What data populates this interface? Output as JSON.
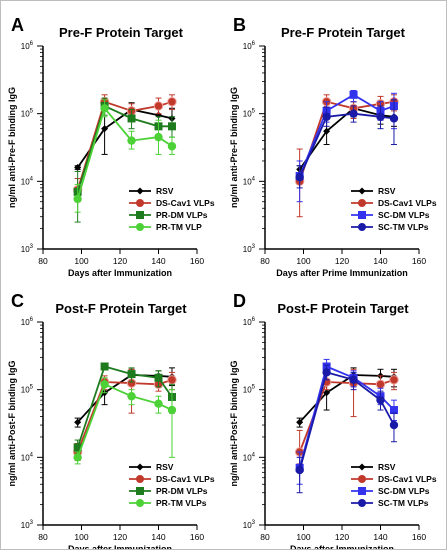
{
  "figure": {
    "panels_order": [
      "A",
      "B",
      "C",
      "D"
    ]
  },
  "chart_data": [
    {
      "panel_letter": "A",
      "type": "line",
      "title": "Pre-F Protein Target",
      "xlabel": "Days after Immunization",
      "ylabel": "ng/ml anti-Pre-F binding IgG",
      "xlim": [
        80,
        160
      ],
      "ylim": [
        1000,
        1000000
      ],
      "y_scale": "log",
      "xticks": [
        "80",
        "100",
        "120",
        "140",
        "160"
      ],
      "yticks": [
        {
          "base": "10",
          "exp": "3",
          "v": 1000
        },
        {
          "base": "10",
          "exp": "4",
          "v": 10000
        },
        {
          "base": "10",
          "exp": "5",
          "v": 100000
        },
        {
          "base": "10",
          "exp": "6",
          "v": 1000000
        }
      ],
      "legend_position": "lower-right",
      "series": [
        {
          "name": "RSV",
          "color": "#000000",
          "marker": "diamond",
          "x": [
            98,
            112,
            126,
            140,
            147
          ],
          "y": [
            16000,
            60000,
            115000,
            95000,
            85000
          ],
          "err": [
            [
              15000,
              17000
            ],
            [
              25000,
              150000
            ],
            [
              90000,
              145000
            ],
            [
              70000,
              130000
            ],
            [
              60000,
              120000
            ]
          ]
        },
        {
          "name": "DS-Cav1 VLPs",
          "color": "#c0392b",
          "marker": "circle",
          "x": [
            98,
            112,
            126,
            140,
            147
          ],
          "y": [
            7500,
            150000,
            110000,
            130000,
            150000
          ],
          "err": [
            [
              5000,
              11000
            ],
            [
              110000,
              190000
            ],
            [
              85000,
              140000
            ],
            [
              100000,
              170000
            ],
            [
              115000,
              190000
            ]
          ]
        },
        {
          "name": "PR-DM VLPs",
          "color": "#1e7b1e",
          "marker": "square",
          "x": [
            98,
            112,
            126,
            140,
            147
          ],
          "y": [
            7000,
            130000,
            85000,
            65000,
            65000
          ],
          "err": [
            [
              2500,
              14000
            ],
            [
              95000,
              170000
            ],
            [
              60000,
              115000
            ],
            [
              45000,
              90000
            ],
            [
              45000,
              90000
            ]
          ]
        },
        {
          "name": "PR-TM VLP",
          "color": "#4cd137",
          "marker": "circle",
          "x": [
            98,
            112,
            126,
            140,
            147
          ],
          "y": [
            5500,
            120000,
            40000,
            45000,
            33000
          ],
          "err": [
            [
              3500,
              9000
            ],
            [
              90000,
              160000
            ],
            [
              30000,
              55000
            ],
            [
              25000,
              80000
            ],
            [
              25000,
              45000
            ]
          ]
        }
      ]
    },
    {
      "panel_letter": "B",
      "type": "line",
      "title": "Pre-F Protein Target",
      "xlabel": "Days after Prime Immunization",
      "ylabel": "ng/ml anti-Pre-F binding IgG",
      "xlim": [
        80,
        160
      ],
      "ylim": [
        1000,
        1000000
      ],
      "y_scale": "log",
      "xticks": [
        "80",
        "100",
        "120",
        "140",
        "160"
      ],
      "yticks": [
        {
          "base": "10",
          "exp": "3",
          "v": 1000
        },
        {
          "base": "10",
          "exp": "4",
          "v": 10000
        },
        {
          "base": "10",
          "exp": "5",
          "v": 100000
        },
        {
          "base": "10",
          "exp": "6",
          "v": 1000000
        }
      ],
      "legend_position": "lower-right",
      "series": [
        {
          "name": "RSV",
          "color": "#000000",
          "marker": "diamond",
          "x": [
            98,
            112,
            126,
            140,
            147
          ],
          "y": [
            15000,
            55000,
            120000,
            95000,
            90000
          ],
          "err": [
            [
              13000,
              17000
            ],
            [
              35000,
              90000
            ],
            [
              90000,
              150000
            ],
            [
              70000,
              120000
            ],
            [
              65000,
              115000
            ]
          ]
        },
        {
          "name": "DS-Cav1 VLPs",
          "color": "#c0392b",
          "marker": "circle",
          "x": [
            98,
            112,
            126,
            140,
            147
          ],
          "y": [
            10000,
            150000,
            120000,
            140000,
            150000
          ],
          "err": [
            [
              3000,
              30000
            ],
            [
              110000,
              190000
            ],
            [
              85000,
              150000
            ],
            [
              100000,
              180000
            ],
            [
              110000,
              190000
            ]
          ]
        },
        {
          "name": "SC-DM VLPs",
          "color": "#3333ee",
          "marker": "square",
          "x": [
            98,
            112,
            126,
            140,
            147
          ],
          "y": [
            12000,
            110000,
            190000,
            110000,
            130000
          ],
          "err": [
            [
              5000,
              20000
            ],
            [
              75000,
              150000
            ],
            [
              150000,
              220000
            ],
            [
              80000,
              150000
            ],
            [
              60000,
              200000
            ]
          ]
        },
        {
          "name": "SC-TM VLPs",
          "color": "#1a1aa8",
          "marker": "circle",
          "x": [
            98,
            112,
            126,
            140,
            147
          ],
          "y": [
            11500,
            90000,
            100000,
            90000,
            85000
          ],
          "err": [
            [
              8000,
              17000
            ],
            [
              65000,
              125000
            ],
            [
              75000,
              130000
            ],
            [
              60000,
              130000
            ],
            [
              35000,
              160000
            ]
          ]
        }
      ]
    },
    {
      "panel_letter": "C",
      "type": "line",
      "title": "Post-F Protein Target",
      "xlabel": "Days after Immunization",
      "ylabel": "ng/ml anti-Post-F binding IgG",
      "xlim": [
        80,
        160
      ],
      "ylim": [
        1000,
        1000000
      ],
      "y_scale": "log",
      "xticks": [
        "80",
        "100",
        "120",
        "140",
        "160"
      ],
      "yticks": [
        {
          "base": "10",
          "exp": "3",
          "v": 1000
        },
        {
          "base": "10",
          "exp": "4",
          "v": 10000
        },
        {
          "base": "10",
          "exp": "5",
          "v": 100000
        },
        {
          "base": "10",
          "exp": "6",
          "v": 1000000
        }
      ],
      "legend_position": "lower-right",
      "series": [
        {
          "name": "RSV",
          "color": "#000000",
          "marker": "diamond",
          "x": [
            98,
            112,
            126,
            140,
            147
          ],
          "y": [
            33000,
            90000,
            165000,
            160000,
            155000
          ],
          "err": [
            [
              28000,
              38000
            ],
            [
              60000,
              120000
            ],
            [
              135000,
              200000
            ],
            [
              130000,
              190000
            ],
            [
              115000,
              210000
            ]
          ]
        },
        {
          "name": "DS-Cav1 VLPs",
          "color": "#c0392b",
          "marker": "circle",
          "x": [
            98,
            112,
            126,
            140,
            147
          ],
          "y": [
            12000,
            130000,
            125000,
            120000,
            140000
          ],
          "err": [
            [
              9000,
              16000
            ],
            [
              100000,
              160000
            ],
            [
              45000,
              200000
            ],
            [
              95000,
              160000
            ],
            [
              100000,
              180000
            ]
          ]
        },
        {
          "name": "PR-DM VLPs",
          "color": "#1e7b1e",
          "marker": "square",
          "x": [
            98,
            112,
            126,
            140,
            147
          ],
          "y": [
            14000,
            220000,
            170000,
            150000,
            78000
          ],
          "err": [
            [
              10000,
              18000
            ],
            [
              200000,
              240000
            ],
            [
              130000,
              210000
            ],
            [
              110000,
              190000
            ],
            [
              45000,
              120000
            ]
          ]
        },
        {
          "name": "PR-TM VLPs",
          "color": "#4cd137",
          "marker": "circle",
          "x": [
            98,
            112,
            126,
            140,
            147
          ],
          "y": [
            10000,
            120000,
            80000,
            62000,
            50000
          ],
          "err": [
            [
              8000,
              12000
            ],
            [
              90000,
              150000
            ],
            [
              60000,
              100000
            ],
            [
              45000,
              80000
            ],
            [
              10000,
              100000
            ]
          ]
        }
      ]
    },
    {
      "panel_letter": "D",
      "type": "line",
      "title": "Post-F Protein Target",
      "xlabel": "Days after Immunization",
      "ylabel": "ng/ml anti-Post-F binding IgG",
      "xlim": [
        80,
        160
      ],
      "ylim": [
        1000,
        1000000
      ],
      "y_scale": "log",
      "xticks": [
        "80",
        "100",
        "120",
        "140",
        "160"
      ],
      "yticks": [
        {
          "base": "10",
          "exp": "3",
          "v": 1000
        },
        {
          "base": "10",
          "exp": "4",
          "v": 10000
        },
        {
          "base": "10",
          "exp": "5",
          "v": 100000
        },
        {
          "base": "10",
          "exp": "6",
          "v": 1000000
        }
      ],
      "legend_position": "lower-right",
      "series": [
        {
          "name": "RSV",
          "color": "#000000",
          "marker": "diamond",
          "x": [
            98,
            112,
            126,
            140,
            147
          ],
          "y": [
            33000,
            90000,
            165000,
            160000,
            155000
          ],
          "err": [
            [
              28000,
              38000
            ],
            [
              50000,
              140000
            ],
            [
              120000,
              210000
            ],
            [
              120000,
              200000
            ],
            [
              110000,
              200000
            ]
          ]
        },
        {
          "name": "DS-Cav1 VLPs",
          "color": "#c0392b",
          "marker": "circle",
          "x": [
            98,
            112,
            126,
            140,
            147
          ],
          "y": [
            12000,
            130000,
            125000,
            120000,
            140000
          ],
          "err": [
            [
              8000,
              25000
            ],
            [
              100000,
              170000
            ],
            [
              40000,
              200000
            ],
            [
              90000,
              160000
            ],
            [
              100000,
              180000
            ]
          ]
        },
        {
          "name": "SC-DM VLPs",
          "color": "#3333ee",
          "marker": "square",
          "x": [
            98,
            112,
            126,
            140,
            147
          ],
          "y": [
            7000,
            220000,
            150000,
            80000,
            50000
          ],
          "err": [
            [
              4000,
              12000
            ],
            [
              180000,
              280000
            ],
            [
              110000,
              190000
            ],
            [
              60000,
              105000
            ],
            [
              35000,
              70000
            ]
          ]
        },
        {
          "name": "SC-TM VLPs",
          "color": "#1a1aa8",
          "marker": "circle",
          "x": [
            98,
            112,
            126,
            140,
            147
          ],
          "y": [
            6500,
            180000,
            140000,
            70000,
            30000
          ],
          "err": [
            [
              3000,
              10000
            ],
            [
              140000,
              230000
            ],
            [
              100000,
              180000
            ],
            [
              50000,
              95000
            ],
            [
              17000,
              45000
            ]
          ]
        }
      ]
    }
  ]
}
